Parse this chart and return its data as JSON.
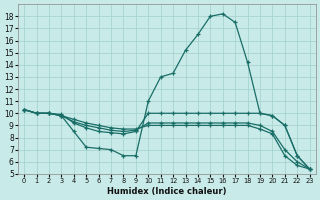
{
  "xlabel": "Humidex (Indice chaleur)",
  "bg_color": "#c8eae8",
  "grid_color": "#a8d4d0",
  "line_color": "#1a6e68",
  "marker": "+",
  "xlim": [
    -0.5,
    23.5
  ],
  "ylim": [
    5,
    19
  ],
  "xticks": [
    0,
    1,
    2,
    3,
    4,
    5,
    6,
    7,
    8,
    9,
    10,
    11,
    12,
    13,
    14,
    15,
    16,
    17,
    18,
    19,
    20,
    21,
    22,
    23
  ],
  "yticks": [
    5,
    6,
    7,
    8,
    9,
    10,
    11,
    12,
    13,
    14,
    15,
    16,
    17,
    18
  ],
  "lines": [
    {
      "x": [
        0,
        1,
        2,
        3,
        4,
        5,
        6,
        7,
        8,
        9,
        10,
        11,
        12,
        13,
        14,
        15,
        16,
        17,
        18,
        19,
        20,
        21,
        22,
        23
      ],
      "y": [
        10.3,
        10.0,
        10.0,
        9.8,
        8.5,
        7.2,
        7.1,
        7.0,
        6.5,
        6.5,
        11.0,
        13.0,
        13.3,
        15.2,
        16.5,
        18.0,
        18.2,
        17.5,
        14.2,
        10.0,
        9.8,
        9.0,
        6.5,
        5.4
      ]
    },
    {
      "x": [
        0,
        1,
        2,
        3,
        4,
        5,
        6,
        7,
        8,
        9,
        10,
        11,
        12,
        13,
        14,
        15,
        16,
        17,
        18,
        19,
        20,
        21,
        22,
        23
      ],
      "y": [
        10.3,
        10.0,
        10.0,
        9.9,
        9.2,
        8.8,
        8.5,
        8.4,
        8.3,
        8.5,
        10.0,
        10.0,
        10.0,
        10.0,
        10.0,
        10.0,
        10.0,
        10.0,
        10.0,
        10.0,
        9.8,
        9.0,
        6.5,
        5.4
      ]
    },
    {
      "x": [
        0,
        1,
        2,
        3,
        4,
        5,
        6,
        7,
        8,
        9,
        10,
        11,
        12,
        13,
        14,
        15,
        16,
        17,
        18,
        19,
        20,
        21,
        22,
        23
      ],
      "y": [
        10.3,
        10.0,
        10.0,
        9.8,
        9.3,
        9.0,
        8.8,
        8.6,
        8.5,
        8.6,
        9.2,
        9.2,
        9.2,
        9.2,
        9.2,
        9.2,
        9.2,
        9.2,
        9.2,
        9.0,
        8.5,
        7.0,
        6.0,
        5.4
      ]
    },
    {
      "x": [
        0,
        1,
        2,
        3,
        4,
        5,
        6,
        7,
        8,
        9,
        10,
        11,
        12,
        13,
        14,
        15,
        16,
        17,
        18,
        19,
        20,
        21,
        22,
        23
      ],
      "y": [
        10.3,
        10.0,
        10.0,
        9.8,
        9.5,
        9.2,
        9.0,
        8.8,
        8.7,
        8.7,
        9.0,
        9.0,
        9.0,
        9.0,
        9.0,
        9.0,
        9.0,
        9.0,
        9.0,
        8.7,
        8.3,
        6.5,
        5.7,
        5.4
      ]
    }
  ]
}
